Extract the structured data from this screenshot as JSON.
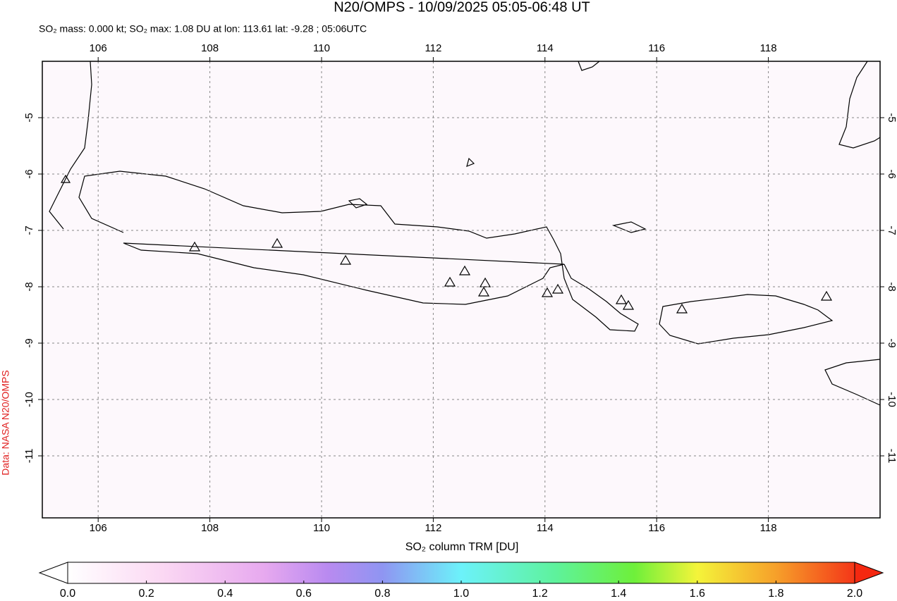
{
  "title": "N20/OMPS - 10/09/2025 05:05-06:48 UT",
  "subtitle": "SO₂ mass: 0.000 kt; SO₂ max: 1.08 DU at lon: 113.61 lat: -9.28 ; 05:06UTC",
  "map": {
    "xlim": [
      105,
      120
    ],
    "ylim": [
      -12.1,
      -4
    ],
    "xticks": [
      106,
      108,
      110,
      112,
      114,
      116,
      118
    ],
    "yticks": [
      -5,
      -6,
      -7,
      -8,
      -9,
      -10,
      -11
    ],
    "grid": true
  },
  "colorbar": {
    "label": "SO₂ column TRM [DU]",
    "lim": [
      0,
      2
    ],
    "ticks": [
      {
        "value": 0,
        "label": "0.0"
      },
      {
        "value": 0.2,
        "label": "0.2"
      },
      {
        "value": 0.4,
        "label": "0.4"
      },
      {
        "value": 0.6,
        "label": "0.6"
      },
      {
        "value": 0.8,
        "label": "0.8"
      },
      {
        "value": 1,
        "label": "1.0"
      },
      {
        "value": 1.2,
        "label": "1.2"
      },
      {
        "value": 1.4,
        "label": "1.4"
      },
      {
        "value": 1.6,
        "label": "1.6"
      },
      {
        "value": 1.8,
        "label": "1.8"
      },
      {
        "value": 2,
        "label": "2.0"
      }
    ]
  },
  "credit": "Data: NASA N20/OMPS"
}
